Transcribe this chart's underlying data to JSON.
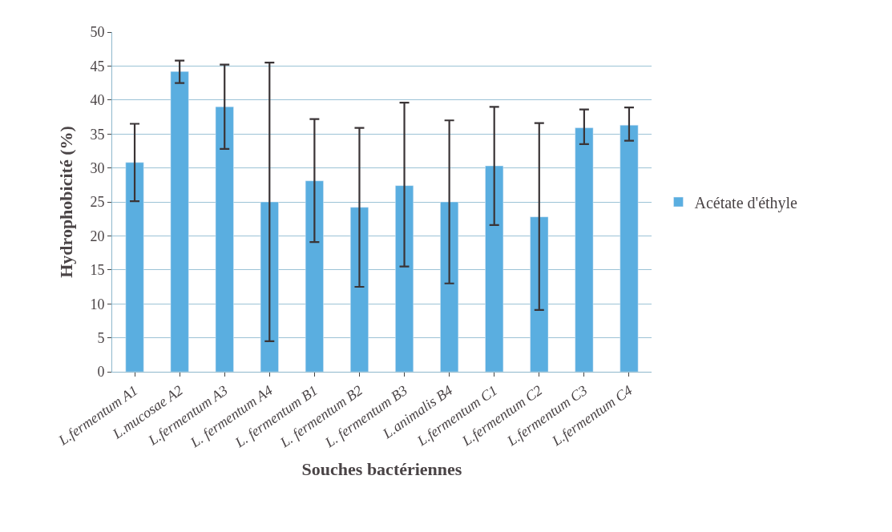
{
  "chart_data": {
    "type": "bar",
    "xlabel": "Souches bactériennes",
    "ylabel": "Hydrophobicité (%)",
    "categories": [
      "L.fermentum A1",
      "L.mucosae A2",
      "L.fermentum A3",
      "L. fermentum A4",
      "L. fermentum B1",
      "L. fermentum B2",
      "L. fermentum B3",
      "L.animalis B4",
      "L.fermentum C1",
      "L.fermentum C2",
      "L.fermentum C3",
      "L.fermentum C4"
    ],
    "series": [
      {
        "name": "Acétate d'éthyle",
        "color": "#5aaee0",
        "values": [
          30.8,
          44.2,
          39,
          25,
          28.1,
          24.2,
          27.4,
          25,
          30.3,
          22.8,
          35.9,
          36.3
        ],
        "errors": [
          [
            25.1,
            36.5
          ],
          [
            42.5,
            45.8
          ],
          [
            32.8,
            45.2
          ],
          [
            4.5,
            45.5
          ],
          [
            19.1,
            37.2
          ],
          [
            12.5,
            35.9
          ],
          [
            15.5,
            39.6
          ],
          [
            13,
            37
          ],
          [
            21.6,
            39
          ],
          [
            9.1,
            36.6
          ],
          [
            33.5,
            38.6
          ],
          [
            34,
            38.9
          ]
        ]
      }
    ],
    "ylim": [
      0,
      50
    ],
    "yticks": [
      0,
      5,
      10,
      15,
      20,
      25,
      30,
      35,
      40,
      45,
      50
    ],
    "grid": "y",
    "legend": "right"
  }
}
